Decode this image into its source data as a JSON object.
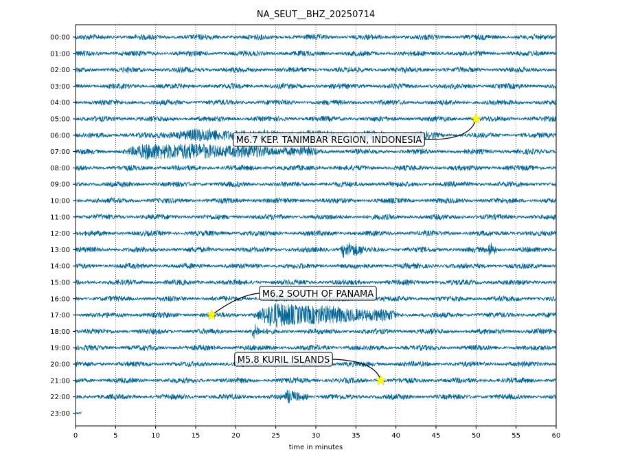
{
  "chart_data": {
    "type": "line",
    "title": "NA_SEUT__BHZ_20250714",
    "xlabel": "time in minutes",
    "ylabel": "",
    "xlim": [
      0,
      60
    ],
    "x_ticks": [
      0,
      5,
      10,
      15,
      20,
      25,
      30,
      35,
      40,
      45,
      50,
      55,
      60
    ],
    "grid": "vertical dotted",
    "trace_color": "#006699",
    "rows": [
      "00:00",
      "01:00",
      "02:00",
      "03:00",
      "04:00",
      "05:00",
      "06:00",
      "07:00",
      "08:00",
      "09:00",
      "10:00",
      "11:00",
      "12:00",
      "13:00",
      "14:00",
      "15:00",
      "16:00",
      "17:00",
      "18:00",
      "19:00",
      "20:00",
      "21:00",
      "22:00",
      "23:00"
    ],
    "last_row_end_minutes": 0.8,
    "events": [
      {
        "label": "M6.7 KEP. TANIMBAR REGION, INDONESIA",
        "row": "05:00",
        "minute": 50.0,
        "marker": "star",
        "marker_color": "#ffff00"
      },
      {
        "label": "M6.2 SOUTH OF PANAMA",
        "row": "17:00",
        "minute": 17.0,
        "marker": "star",
        "marker_color": "#ffff00"
      },
      {
        "label": "M5.8 KURIL ISLANDS",
        "row": "21:00",
        "minute": 38.1,
        "marker": "star",
        "marker_color": "#ffff00"
      }
    ],
    "signal_features": [
      {
        "row": "06:00",
        "from": 9.5,
        "to": 45,
        "amplitude": "moderate"
      },
      {
        "row": "07:00",
        "from": 6,
        "to": 30,
        "amplitude": "high"
      },
      {
        "row": "13:00",
        "from": 33,
        "to": 36,
        "amplitude": "high"
      },
      {
        "row": "13:00",
        "from": 51.5,
        "to": 52.5,
        "amplitude": "high"
      },
      {
        "row": "17:00",
        "from": 22,
        "to": 40,
        "amplitude": "very high"
      },
      {
        "row": "18:00",
        "from": 22,
        "to": 23,
        "amplitude": "high"
      },
      {
        "row": "22:00",
        "from": 26,
        "to": 29,
        "amplitude": "moderate"
      }
    ]
  }
}
